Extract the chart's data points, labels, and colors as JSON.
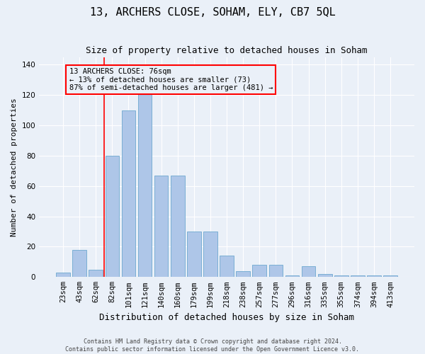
{
  "title": "13, ARCHERS CLOSE, SOHAM, ELY, CB7 5QL",
  "subtitle": "Size of property relative to detached houses in Soham",
  "xlabel": "Distribution of detached houses by size in Soham",
  "ylabel": "Number of detached properties",
  "categories": [
    "23sqm",
    "43sqm",
    "62sqm",
    "82sqm",
    "101sqm",
    "121sqm",
    "140sqm",
    "160sqm",
    "179sqm",
    "199sqm",
    "218sqm",
    "238sqm",
    "257sqm",
    "277sqm",
    "296sqm",
    "316sqm",
    "335sqm",
    "355sqm",
    "374sqm",
    "394sqm",
    "413sqm"
  ],
  "values": [
    3,
    18,
    5,
    80,
    110,
    121,
    67,
    67,
    30,
    30,
    14,
    4,
    8,
    8,
    1,
    7,
    2,
    1,
    1,
    1,
    1
  ],
  "bar_color": "#aec6e8",
  "bar_edge_color": "#7aafd4",
  "vline_x": 2.5,
  "annotation_line1": "13 ARCHERS CLOSE: 76sqm",
  "annotation_line2": "← 13% of detached houses are smaller (73)",
  "annotation_line3": "87% of semi-detached houses are larger (481) →",
  "ylim": [
    0,
    145
  ],
  "footer1": "Contains HM Land Registry data © Crown copyright and database right 2024.",
  "footer2": "Contains public sector information licensed under the Open Government Licence v3.0.",
  "bg_color": "#eaf0f8",
  "grid_color": "#ffffff",
  "title_fontsize": 11,
  "subtitle_fontsize": 9,
  "ylabel_fontsize": 8,
  "xlabel_fontsize": 9,
  "tick_fontsize": 7.5,
  "annotation_fontsize": 7.5,
  "footer_fontsize": 6
}
